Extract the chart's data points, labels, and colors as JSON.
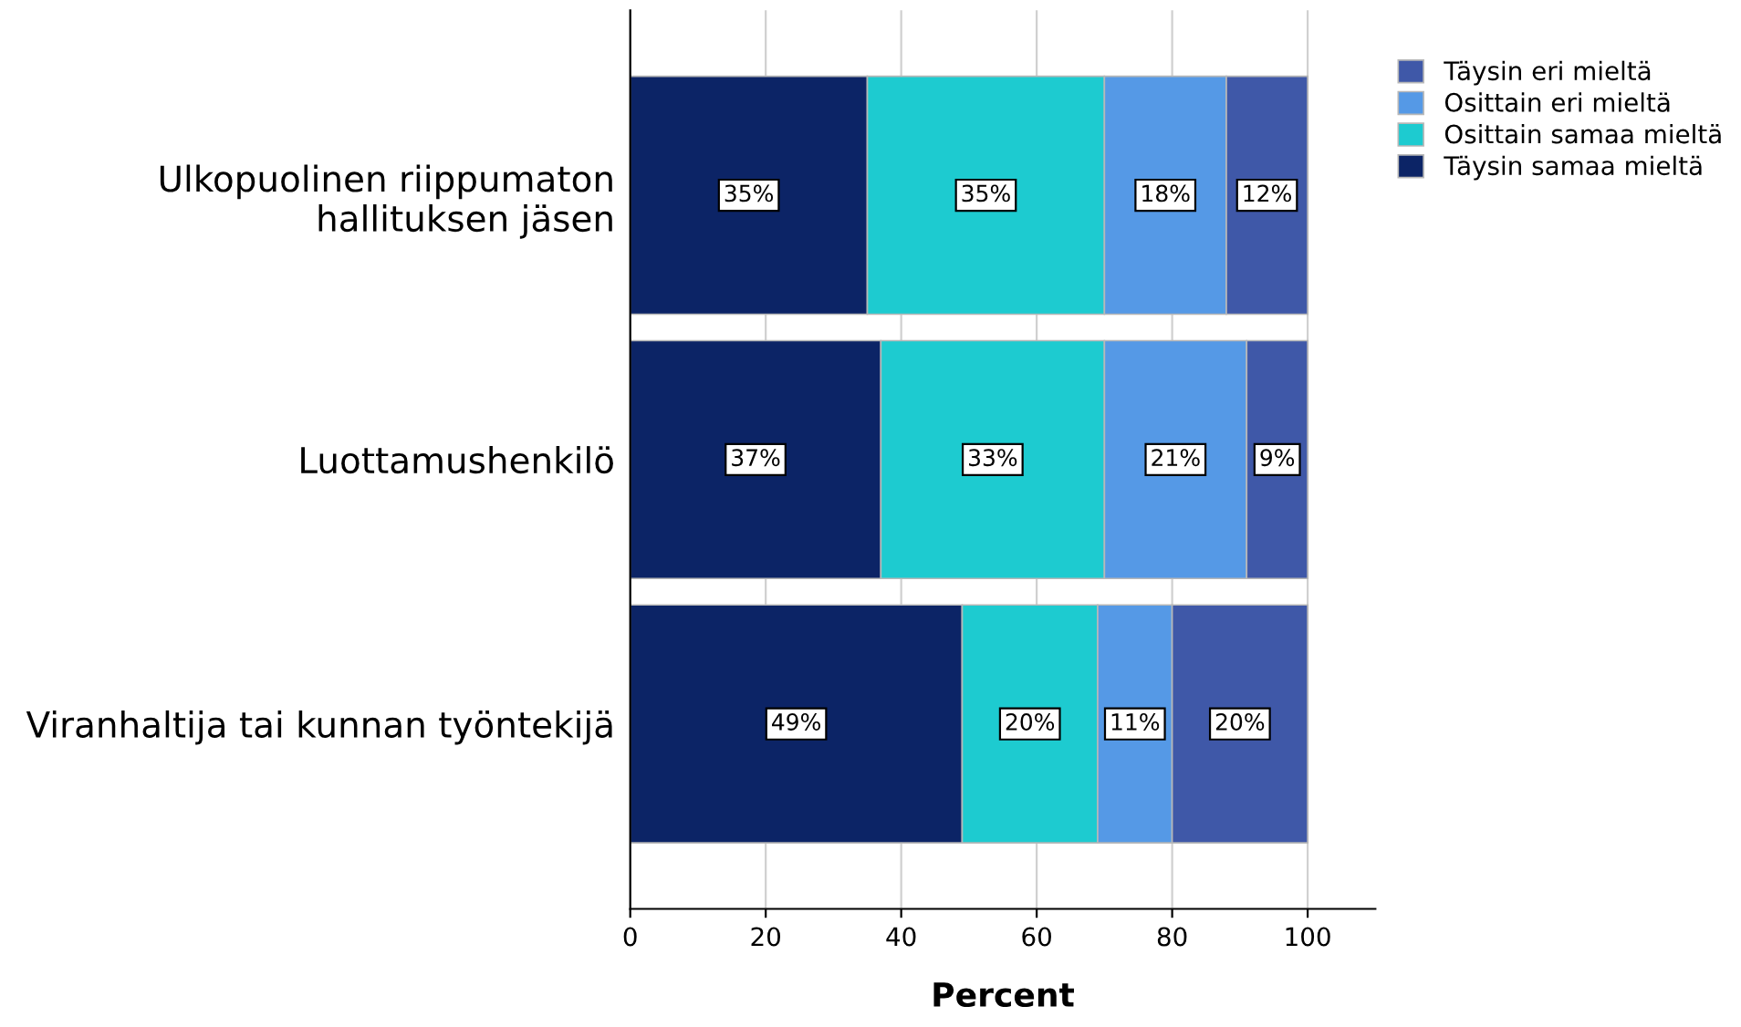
{
  "chart_data": {
    "type": "bar",
    "orientation": "horizontal",
    "stacked": true,
    "xlabel": "Percent",
    "categories": [
      "Ulkopuolinen riippumaton\nhallituksen jäsen",
      "Luottamushenkilö",
      "Viranhaltija tai kunnan työntekijä"
    ],
    "series": [
      {
        "name": "Täysin samaa mieltä",
        "color": "#0c2466",
        "values": [
          35,
          37,
          49
        ],
        "value_labels": [
          "35%",
          "37%",
          "49%"
        ]
      },
      {
        "name": "Osittain samaa mieltä",
        "color": "#1dcbd0",
        "values": [
          35,
          33,
          20
        ],
        "value_labels": [
          "35%",
          "33%",
          "20%"
        ]
      },
      {
        "name": "Osittain eri mieltä",
        "color": "#5599e6",
        "values": [
          18,
          21,
          11
        ],
        "value_labels": [
          "18%",
          "21%",
          "11%"
        ]
      },
      {
        "name": "Täysin eri mieltä",
        "color": "#3f58a8",
        "values": [
          12,
          9,
          20
        ],
        "value_labels": [
          "12%",
          "9%",
          "20%"
        ]
      }
    ],
    "xlim": [
      0,
      110
    ],
    "xticks": [
      0,
      20,
      40,
      60,
      80,
      100
    ],
    "grid": "x",
    "legend": "top right"
  }
}
